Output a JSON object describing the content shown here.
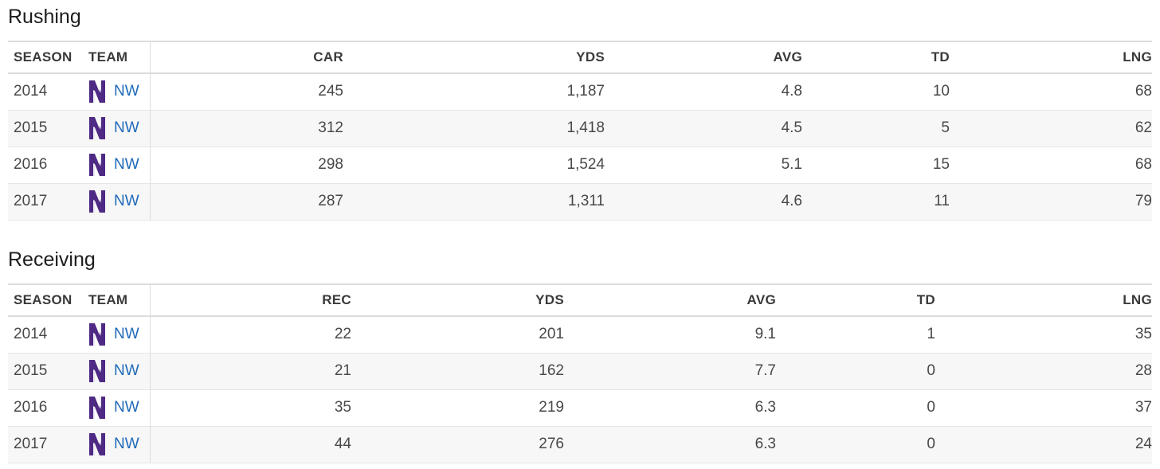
{
  "colors": {
    "team_link": "#1e6ab9",
    "logo_purple": "#4e2a84",
    "row_alt_bg": "#f7f7f7"
  },
  "rushing": {
    "title": "Rushing",
    "headers": [
      "SEASON",
      "TEAM",
      "CAR",
      "YDS",
      "AVG",
      "TD",
      "LNG"
    ],
    "rows": [
      {
        "season": "2014",
        "team": "NW",
        "logo": "northwestern-n-icon",
        "car": "245",
        "yds": "1,187",
        "avg": "4.8",
        "td": "10",
        "lng": "68"
      },
      {
        "season": "2015",
        "team": "NW",
        "logo": "northwestern-n-icon",
        "car": "312",
        "yds": "1,418",
        "avg": "4.5",
        "td": "5",
        "lng": "62"
      },
      {
        "season": "2016",
        "team": "NW",
        "logo": "northwestern-n-icon",
        "car": "298",
        "yds": "1,524",
        "avg": "5.1",
        "td": "15",
        "lng": "68"
      },
      {
        "season": "2017",
        "team": "NW",
        "logo": "northwestern-n-icon",
        "car": "287",
        "yds": "1,311",
        "avg": "4.6",
        "td": "11",
        "lng": "79"
      }
    ]
  },
  "receiving": {
    "title": "Receiving",
    "headers": [
      "SEASON",
      "TEAM",
      "REC",
      "YDS",
      "AVG",
      "TD",
      "LNG"
    ],
    "rows": [
      {
        "season": "2014",
        "team": "NW",
        "logo": "northwestern-n-icon",
        "rec": "22",
        "yds": "201",
        "avg": "9.1",
        "td": "1",
        "lng": "35"
      },
      {
        "season": "2015",
        "team": "NW",
        "logo": "northwestern-n-icon",
        "rec": "21",
        "yds": "162",
        "avg": "7.7",
        "td": "0",
        "lng": "28"
      },
      {
        "season": "2016",
        "team": "NW",
        "logo": "northwestern-n-icon",
        "rec": "35",
        "yds": "219",
        "avg": "6.3",
        "td": "0",
        "lng": "37"
      },
      {
        "season": "2017",
        "team": "NW",
        "logo": "northwestern-n-icon",
        "rec": "44",
        "yds": "276",
        "avg": "6.3",
        "td": "0",
        "lng": "24"
      }
    ]
  }
}
